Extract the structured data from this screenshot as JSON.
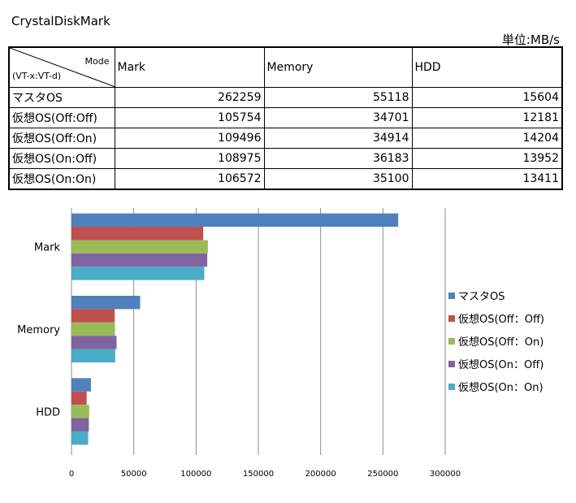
{
  "title": "CrystalDiskMark",
  "unit": "単位:MB/s",
  "table": {
    "corner_top": "Mode",
    "corner_bottom": "(VT-x:VT-d)",
    "columns": [
      "Mark",
      "Memory",
      "HDD"
    ],
    "rows": [
      {
        "label": "マスタOS",
        "values": [
          "262259",
          "55118",
          "15604"
        ]
      },
      {
        "label": "仮想OS(Off:Off)",
        "values": [
          "105754",
          "34701",
          "12181"
        ]
      },
      {
        "label": "仮想OS(Off:On)",
        "values": [
          "109496",
          "34914",
          "14204"
        ]
      },
      {
        "label": "仮想OS(On:Off)",
        "values": [
          "108975",
          "36183",
          "13952"
        ]
      },
      {
        "label": "仮想OS(On:On)",
        "values": [
          "106572",
          "35100",
          "13411"
        ]
      }
    ]
  },
  "chart_data": {
    "type": "bar",
    "orientation": "horizontal",
    "categories": [
      "Mark",
      "Memory",
      "HDD"
    ],
    "series": [
      {
        "name": "マスタOS",
        "color": "#4f81bd",
        "values": [
          262259,
          55118,
          15604
        ]
      },
      {
        "name": "仮想OS(Off：Off)",
        "color": "#c0504d",
        "values": [
          105754,
          34701,
          12181
        ]
      },
      {
        "name": "仮想OS(Off：On)",
        "color": "#9bbb59",
        "values": [
          109496,
          34914,
          14204
        ]
      },
      {
        "name": "仮想OS(On：Off)",
        "color": "#8064a2",
        "values": [
          108975,
          36183,
          13952
        ]
      },
      {
        "name": "仮想OS(On：On)",
        "color": "#4bacc6",
        "values": [
          106572,
          35100,
          13411
        ]
      }
    ],
    "xlim": [
      0,
      300000
    ],
    "xticks": [
      "0",
      "50000",
      "100000",
      "150000",
      "200000",
      "250000",
      "300000"
    ],
    "grid": true,
    "legend": "right"
  }
}
